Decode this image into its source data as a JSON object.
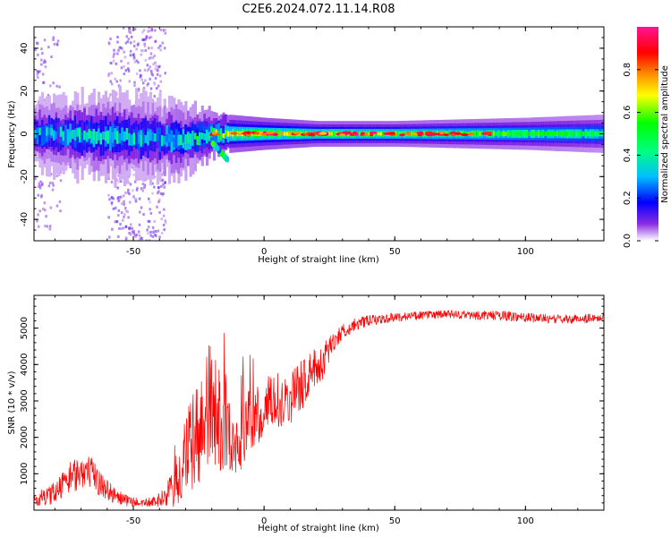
{
  "title": "C2E6.2024.072.11.14.R08",
  "chart_data": [
    {
      "type": "heatmap",
      "xlabel": "Height of straight line (km)",
      "ylabel": "Frequency (Hz)",
      "xlim": [
        -88,
        130
      ],
      "ylim": [
        -50,
        50
      ],
      "x_ticks": [
        -50,
        0,
        50,
        100
      ],
      "y_ticks": [
        -40,
        -20,
        0,
        20,
        40
      ],
      "colorbar": {
        "label": "Normalized spectral amplitude",
        "range": [
          0.0,
          1.0
        ],
        "ticks": [
          0.0,
          0.2,
          0.4,
          0.6,
          0.8
        ],
        "colormap": "gist_ncar-like",
        "colors": [
          "#ffffff",
          "#8a2be2",
          "#0000ff",
          "#00bfff",
          "#00ff7f",
          "#00ff00",
          "#ffff00",
          "#ff8c00",
          "#ff0000",
          "#ff1493"
        ]
      },
      "band_profile": {
        "x": [
          -88,
          -60,
          -40,
          -30,
          -20,
          -14,
          0,
          20,
          50,
          100,
          130
        ],
        "center_freq_hz": [
          0,
          -1,
          -2,
          -3,
          0,
          0,
          0,
          0,
          0,
          0,
          0
        ],
        "half_width_hz": [
          5,
          6,
          6,
          5,
          3,
          3,
          2.5,
          2,
          2,
          2.5,
          3
        ],
        "peak_amplitude": [
          0.4,
          0.45,
          0.4,
          0.5,
          0.7,
          0.85,
          0.9,
          0.85,
          0.8,
          0.7,
          0.6
        ]
      },
      "scatter_region": {
        "x": [
          -60,
          -38
        ],
        "freq_hz": [
          -50,
          50
        ],
        "amplitude": 0.1
      },
      "lower_trail": {
        "x": [
          -20,
          -14
        ],
        "freq_hz": [
          -13,
          -4
        ],
        "amplitude": 0.4
      }
    },
    {
      "type": "line",
      "xlabel": "Height of straight line (km)",
      "ylabel": "SNR (10 * v/v)",
      "xlim": [
        -88,
        130
      ],
      "ylim": [
        0,
        5900
      ],
      "x_ticks": [
        -50,
        0,
        50,
        100
      ],
      "y_ticks": [
        1000,
        2000,
        3000,
        4000,
        5000
      ],
      "line_color": "#ff0000",
      "series": [
        {
          "x": [
            -88,
            -82,
            -78,
            -74,
            -70,
            -66,
            -62,
            -58,
            -54,
            -50,
            -46,
            -42,
            -38,
            -34,
            -30,
            -26,
            -22,
            -20,
            -18,
            -14,
            -12,
            -10,
            -6,
            -2,
            2,
            6,
            10,
            14,
            18,
            22,
            26,
            30,
            35,
            40,
            50,
            60,
            70,
            80,
            90,
            100,
            110,
            120,
            130
          ],
          "y": [
            300,
            400,
            650,
            900,
            1100,
            1000,
            700,
            450,
            300,
            220,
            200,
            230,
            350,
            700,
            1300,
            2000,
            2600,
            3000,
            2400,
            2500,
            1600,
            1800,
            2400,
            2600,
            3000,
            2900,
            3100,
            3400,
            3800,
            4000,
            4600,
            4900,
            5100,
            5200,
            5300,
            5350,
            5380,
            5350,
            5350,
            5300,
            5250,
            5250,
            5300
          ],
          "noise": [
            200,
            250,
            350,
            450,
            500,
            450,
            350,
            250,
            180,
            130,
            120,
            140,
            250,
            700,
            1300,
            1500,
            1700,
            1800,
            1500,
            1400,
            900,
            1000,
            900,
            800,
            700,
            650,
            750,
            700,
            600,
            500,
            300,
            220,
            180,
            150,
            120,
            120,
            120,
            120,
            140,
            130,
            120,
            120,
            120
          ]
        }
      ]
    }
  ]
}
